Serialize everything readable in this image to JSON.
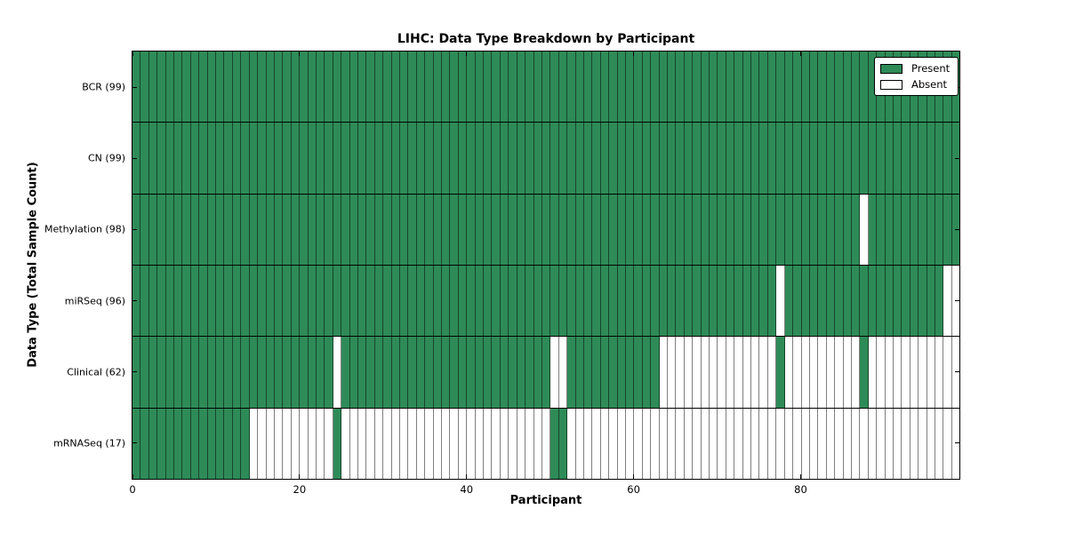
{
  "title": "LIHC: Data Type Breakdown by Participant",
  "colors": {
    "present": "#2e8b57",
    "absent": "#ffffff",
    "axis": "#000000",
    "cell_divider": "rgba(0,0,0,0.5)"
  },
  "chart_data": {
    "type": "heatmap",
    "title": "LIHC: Data Type Breakdown by Participant",
    "xlabel": "Participant",
    "ylabel": "Data Type (Total Sample Count)",
    "n_participants": 99,
    "x_range": [
      0,
      99
    ],
    "x_ticks": [
      0,
      20,
      40,
      60,
      80
    ],
    "grid": false,
    "legend_position": "upper right",
    "legend": [
      {
        "label": "Present",
        "color": "#2e8b57"
      },
      {
        "label": "Absent",
        "color": "#ffffff"
      }
    ],
    "rows": [
      {
        "name": "BCR",
        "label": "BCR (99)",
        "present_count": 99,
        "present_ranges": [
          [
            0,
            98
          ]
        ]
      },
      {
        "name": "CN",
        "label": "CN (99)",
        "present_count": 99,
        "present_ranges": [
          [
            0,
            98
          ]
        ]
      },
      {
        "name": "Methylation",
        "label": "Methylation (98)",
        "present_count": 98,
        "present_ranges": [
          [
            0,
            86
          ],
          [
            88,
            98
          ]
        ]
      },
      {
        "name": "miRSeq",
        "label": "miRSeq (96)",
        "present_count": 96,
        "present_ranges": [
          [
            0,
            76
          ],
          [
            78,
            96
          ]
        ]
      },
      {
        "name": "Clinical",
        "label": "Clinical (62)",
        "present_count": 62,
        "present_ranges": [
          [
            0,
            23
          ],
          [
            25,
            49
          ],
          [
            52,
            62
          ],
          [
            77,
            77
          ],
          [
            87,
            87
          ]
        ]
      },
      {
        "name": "mRNASeq",
        "label": "mRNASeq (17)",
        "present_count": 17,
        "present_ranges": [
          [
            0,
            13
          ],
          [
            24,
            24
          ],
          [
            50,
            51
          ]
        ]
      }
    ]
  }
}
